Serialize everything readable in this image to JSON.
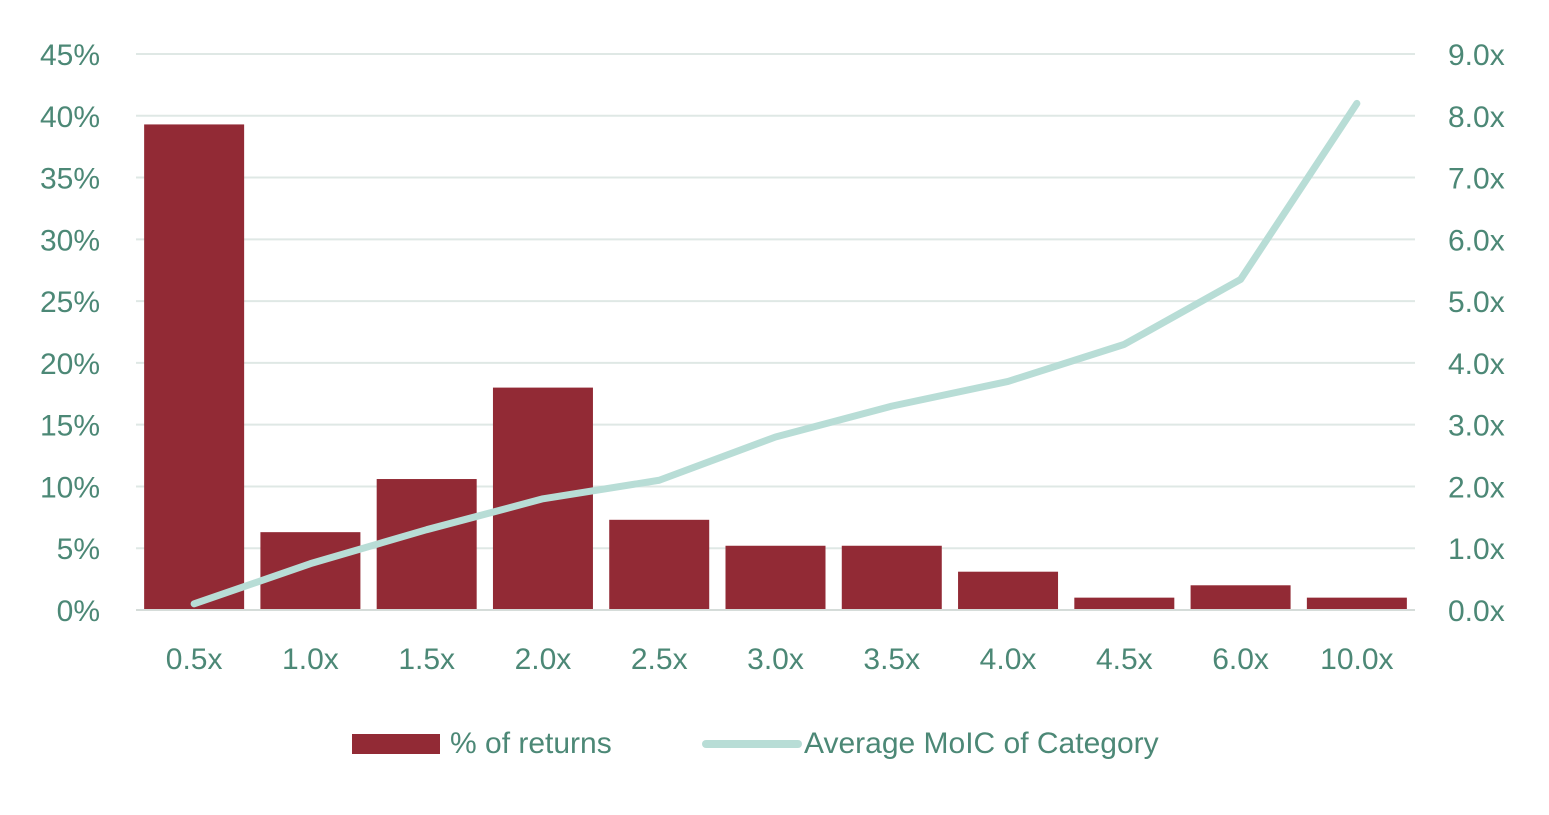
{
  "chart_data": {
    "type": "bar",
    "categories": [
      "0.5x",
      "1.0x",
      "1.5x",
      "2.0x",
      "2.5x",
      "3.0x",
      "3.5x",
      "4.0x",
      "4.5x",
      "6.0x",
      "10.0x"
    ],
    "series": [
      {
        "name": "% of returns",
        "type": "bar",
        "axis": "left",
        "color": "#922a35",
        "values": [
          39.3,
          6.3,
          10.6,
          18.0,
          7.3,
          5.2,
          5.2,
          3.1,
          1.0,
          2.0,
          1.0
        ]
      },
      {
        "name": "Average MoIC of Category",
        "type": "line",
        "axis": "right",
        "color": "#b8ddd6",
        "values": [
          0.1,
          0.75,
          1.3,
          1.8,
          2.1,
          2.8,
          3.3,
          3.7,
          4.3,
          5.35,
          8.2
        ]
      }
    ],
    "y_left": {
      "min": 0,
      "max": 45,
      "ticks": [
        0,
        5,
        10,
        15,
        20,
        25,
        30,
        35,
        40,
        45
      ],
      "tick_labels": [
        "0%",
        "5%",
        "10%",
        "15%",
        "20%",
        "25%",
        "30%",
        "35%",
        "40%",
        "45%"
      ]
    },
    "y_right": {
      "min": 0,
      "max": 9,
      "ticks": [
        0,
        1,
        2,
        3,
        4,
        5,
        6,
        7,
        8,
        9
      ],
      "tick_labels": [
        "0.0x",
        "1.0x",
        "2.0x",
        "3.0x",
        "4.0x",
        "5.0x",
        "6.0x",
        "7.0x",
        "8.0x",
        "9.0x"
      ]
    },
    "grid": true,
    "legend_position": "bottom",
    "colors": {
      "grid": "#dfe8e5",
      "axis": "#d5dcd9",
      "text": "#4c8876"
    }
  }
}
